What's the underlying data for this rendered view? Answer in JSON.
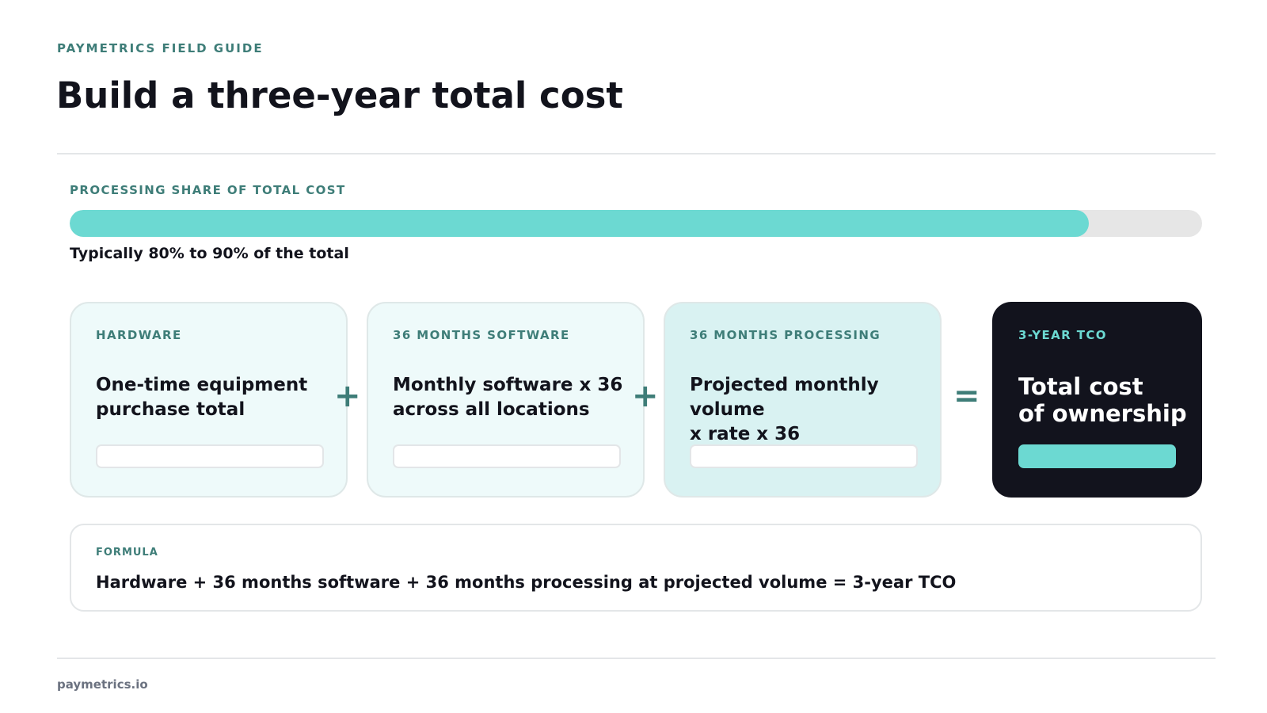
{
  "header": {
    "eyebrow": "PAYMETRICS FIELD GUIDE",
    "title": "Build a three-year total cost"
  },
  "processing_share": {
    "label": "PROCESSING SHARE OF TOTAL COST",
    "note": "Typically 80% to 90% of the total",
    "fill_fraction": 0.9,
    "colors": {
      "fill": "#6cd9d2",
      "track": "#e6e6e6"
    }
  },
  "cards": [
    {
      "label": "HARDWARE",
      "body": "One-time equipment\npurchase total"
    },
    {
      "label": "36 MONTHS SOFTWARE",
      "body": "Monthly software x 36\nacross all locations"
    },
    {
      "label": "36 MONTHS PROCESSING",
      "body": "Projected monthly volume\nx rate x 36"
    },
    {
      "label": "3-YEAR TCO",
      "body": "Total cost\nof ownership"
    }
  ],
  "operators": {
    "plus1": "+",
    "plus2": "+",
    "equals": "="
  },
  "formula": {
    "label": "FORMULA",
    "text": "Hardware + 36 months software + 36 months processing at projected volume = 3-year TCO"
  },
  "footer": {
    "site": "paymetrics.io"
  },
  "colors": {
    "accent": "#3e7d78",
    "teal": "#6cd9d2",
    "dark": "#12131d"
  }
}
